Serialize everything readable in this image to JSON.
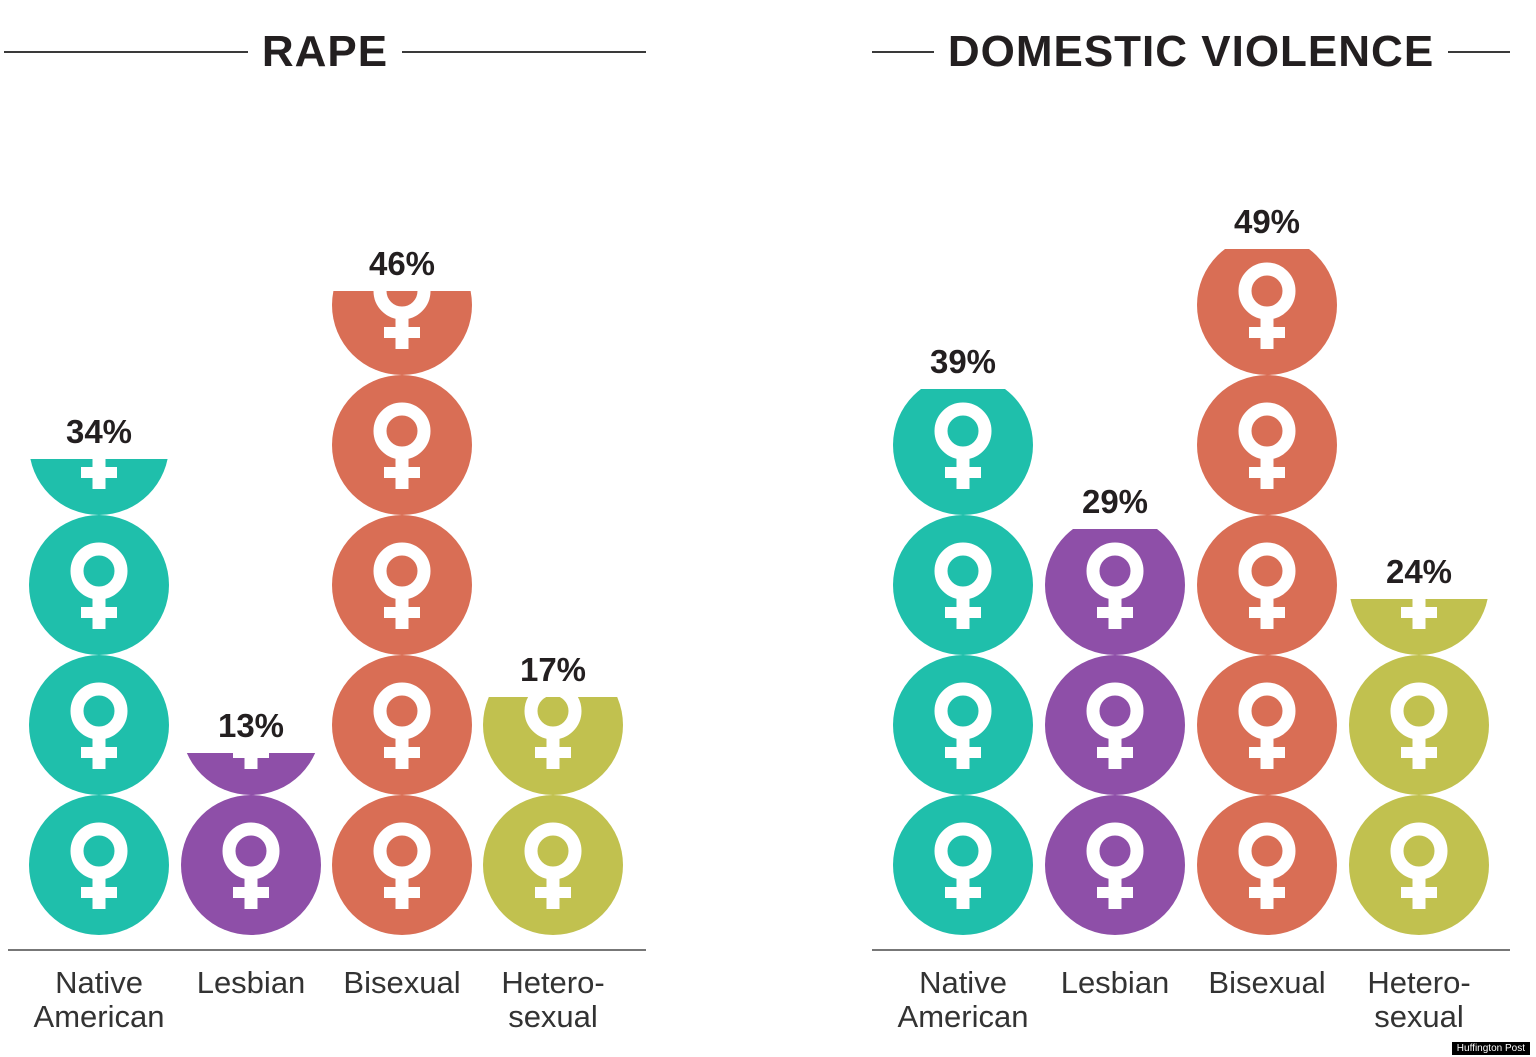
{
  "colors": {
    "Native American": "#1fbfab",
    "Lesbian": "#8e4fa8",
    "Bisexual": "#d96e55",
    "Heterosexual": "#c1c14f"
  },
  "icon_name": "female-symbol-icon",
  "credit": "Huffington Post",
  "chart_data": [
    {
      "type": "bar",
      "title": "RAPE",
      "categories": [
        "Native\nAmerican",
        "Lesbian",
        "Bisexual",
        "Hetero-\nsexual"
      ],
      "series": [
        {
          "values": [
            34,
            13,
            46,
            17
          ]
        }
      ],
      "value_labels": [
        "34%",
        "13%",
        "46%",
        "17%"
      ],
      "unit_per_circle": 10
    },
    {
      "type": "bar",
      "title": "DOMESTIC VIOLENCE",
      "categories": [
        "Native\nAmerican",
        "Lesbian",
        "Bisexual",
        "Hetero-\nsexual"
      ],
      "series": [
        {
          "values": [
            39,
            29,
            49,
            24
          ]
        }
      ],
      "value_labels": [
        "39%",
        "29%",
        "49%",
        "24%"
      ],
      "unit_per_circle": 10
    }
  ]
}
